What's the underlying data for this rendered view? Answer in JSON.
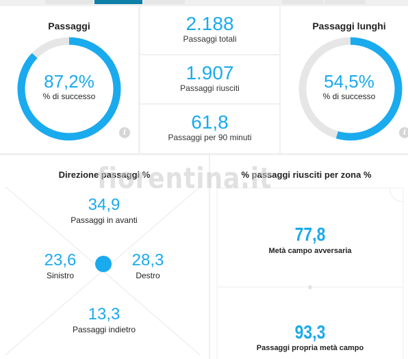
{
  "colors": {
    "accent": "#1aaaee",
    "track": "#e6e6e6",
    "tab_active": "#0e7fa6"
  },
  "passes": {
    "title": "Passaggi",
    "percent_value": 87.2,
    "percent_text": "87,2%",
    "sub": "% di successo",
    "info_icon": "i"
  },
  "long_passes": {
    "title": "Passaggi lunghi",
    "percent_value": 54.5,
    "percent_text": "54,5%",
    "sub": "% di successo",
    "info_icon": "i"
  },
  "stats": [
    {
      "value": "2.188",
      "label": "Passaggi totali"
    },
    {
      "value": "1.907",
      "label": "Passaggi riusciti"
    },
    {
      "value": "61,8",
      "label": "Passaggi per 90 minuti"
    }
  ],
  "direction": {
    "title": "Direzione passaggi %",
    "forward": {
      "value": "34,9",
      "label": "Passaggi in avanti"
    },
    "left": {
      "value": "23,6",
      "label": "Sinistro"
    },
    "right": {
      "value": "28,3",
      "label": "Destro"
    },
    "back": {
      "value": "13,3",
      "label": "Passaggi indietro"
    }
  },
  "zones": {
    "title": "% passaggi riusciti per zona %",
    "opponent_half": {
      "value": "77,8",
      "label": "Metà campo avversaria"
    },
    "own_half": {
      "value": "93,3",
      "label": "Passaggi propria metà campo"
    }
  },
  "watermark": "fiorentina.it"
}
